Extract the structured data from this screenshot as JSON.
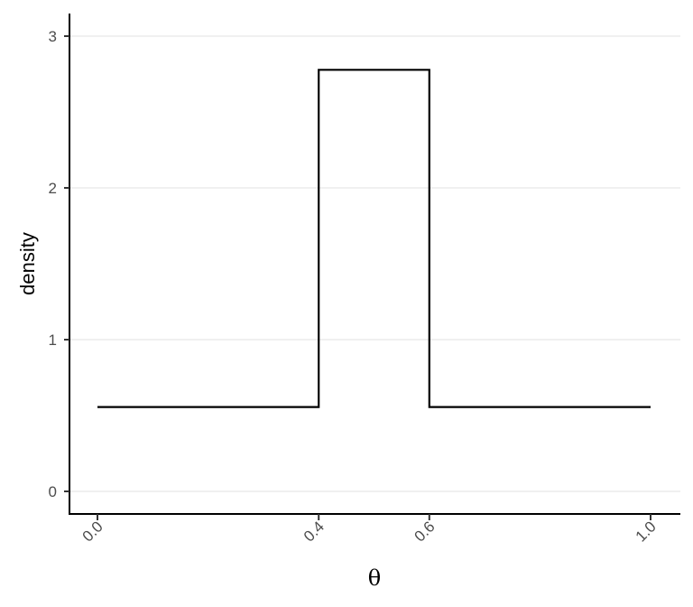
{
  "chart_data": {
    "type": "line",
    "xlabel": "θ",
    "ylabel": "density",
    "xlim": [
      -0.05,
      1.05
    ],
    "ylim": [
      -0.15,
      3.15
    ],
    "x_ticks": [
      0.0,
      0.4,
      0.6,
      1.0
    ],
    "x_tick_labels": [
      "0.0",
      "0.4",
      "0.6",
      "1.0"
    ],
    "y_ticks": [
      0,
      1,
      2,
      3
    ],
    "y_tick_labels": [
      "0",
      "1",
      "2",
      "3"
    ],
    "grid": "horizontal major",
    "line_color": "#000000",
    "series": [
      {
        "x": [
          0.0,
          0.4,
          0.4,
          0.6,
          0.6,
          1.0
        ],
        "y": [
          0.556,
          0.556,
          2.778,
          2.778,
          0.556,
          0.556
        ]
      }
    ]
  }
}
